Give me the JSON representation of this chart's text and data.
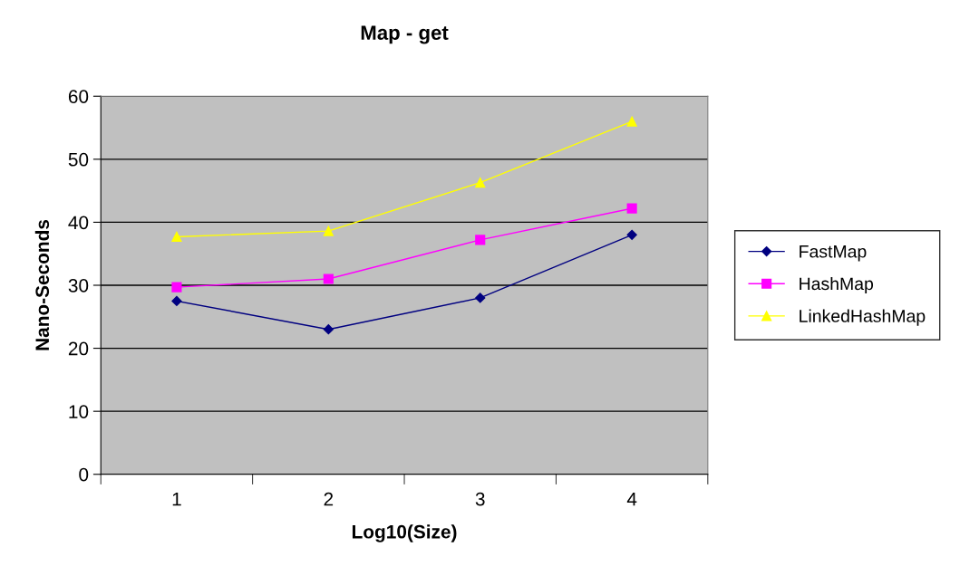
{
  "chart_data": {
    "type": "line",
    "title": "Map - get",
    "xlabel": "Log10(Size)",
    "ylabel": "Nano-Seconds",
    "categories": [
      "1",
      "2",
      "3",
      "4"
    ],
    "series": [
      {
        "name": "FastMap",
        "color": "#000080",
        "values": [
          27.5,
          23,
          28,
          38
        ],
        "marker": "diamond"
      },
      {
        "name": "HashMap",
        "color": "#ff00ff",
        "values": [
          29.7,
          31,
          37.2,
          42.2
        ],
        "marker": "square"
      },
      {
        "name": "LinkedHashMap",
        "color": "#ffff00",
        "values": [
          37.7,
          38.6,
          46.3,
          56
        ],
        "marker": "triangle"
      }
    ],
    "ylim": [
      0,
      60
    ],
    "yticks": [
      0,
      10,
      20,
      30,
      40,
      50,
      60
    ],
    "grid": "y",
    "legend": "right",
    "line_style": "solid"
  }
}
